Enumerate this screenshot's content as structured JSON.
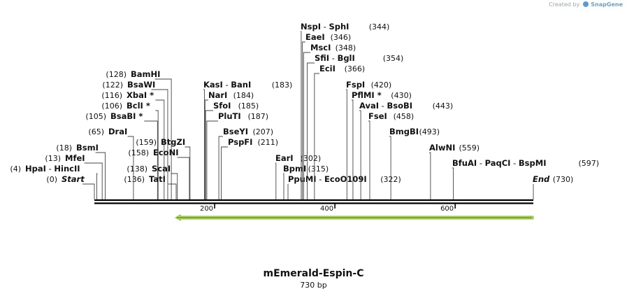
{
  "credit": {
    "prefix": "Created by",
    "brand": "SnapGene"
  },
  "map": {
    "name": "mEmerald-Espin-C",
    "size_label": "730 bp",
    "length_bp": 730,
    "ruler_ticks": [
      200,
      400,
      600
    ],
    "feature": {
      "name": "",
      "start": 135,
      "end": 730,
      "direction": "reverse",
      "color": "#b4e45a"
    },
    "sites": [
      {
        "pos": 0,
        "names": [
          "Start"
        ],
        "style": "italic",
        "num": "(0)"
      },
      {
        "pos": 4,
        "names": [
          "HpaI",
          "HincII"
        ],
        "num": "(4)"
      },
      {
        "pos": 13,
        "names": [
          "MfeI"
        ],
        "num": "(13)"
      },
      {
        "pos": 18,
        "names": [
          "BsmI"
        ],
        "num": "(18)"
      },
      {
        "pos": 65,
        "names": [
          "DraI"
        ],
        "num": "(65)"
      },
      {
        "pos": 105,
        "names": [
          "BsaBI"
        ],
        "star": true,
        "num": "(105)"
      },
      {
        "pos": 106,
        "names": [
          "BclI"
        ],
        "star": true,
        "num": "(106)"
      },
      {
        "pos": 116,
        "names": [
          "XbaI"
        ],
        "star": true,
        "num": "(116)"
      },
      {
        "pos": 122,
        "names": [
          "BsaWI"
        ],
        "num": "(122)"
      },
      {
        "pos": 128,
        "names": [
          "BamHI"
        ],
        "num": "(128)"
      },
      {
        "pos": 136,
        "names": [
          "TatI"
        ],
        "num": "(136)"
      },
      {
        "pos": 138,
        "names": [
          "ScaI"
        ],
        "num": "(138)"
      },
      {
        "pos": 158,
        "names": [
          "EcoNI"
        ],
        "num": "(158)"
      },
      {
        "pos": 159,
        "names": [
          "BtgZI"
        ],
        "num": "(159)"
      },
      {
        "pos": 183,
        "names": [
          "KasI",
          "BanI"
        ],
        "num": "(183)"
      },
      {
        "pos": 184,
        "names": [
          "NarI"
        ],
        "num": "(184)"
      },
      {
        "pos": 185,
        "names": [
          "SfoI"
        ],
        "num": "(185)"
      },
      {
        "pos": 187,
        "names": [
          "PluTI"
        ],
        "num": "(187)"
      },
      {
        "pos": 207,
        "names": [
          "BseYI"
        ],
        "num": "(207)"
      },
      {
        "pos": 211,
        "names": [
          "PspFI"
        ],
        "num": "(211)"
      },
      {
        "pos": 302,
        "names": [
          "EarI"
        ],
        "num": "(302)"
      },
      {
        "pos": 315,
        "names": [
          "BpmI"
        ],
        "num": "(315)"
      },
      {
        "pos": 322,
        "names": [
          "PpuMI",
          "EcoO109I"
        ],
        "num": "(322)"
      },
      {
        "pos": 344,
        "names": [
          "NspI",
          "SphI"
        ],
        "num": "(344)"
      },
      {
        "pos": 346,
        "names": [
          "EaeI"
        ],
        "num": "(346)"
      },
      {
        "pos": 348,
        "names": [
          "MscI"
        ],
        "num": "(348)"
      },
      {
        "pos": 354,
        "names": [
          "SfiI",
          "BglI"
        ],
        "num": "(354)"
      },
      {
        "pos": 366,
        "names": [
          "EciI"
        ],
        "num": "(366)"
      },
      {
        "pos": 420,
        "names": [
          "FspI"
        ],
        "num": "(420)"
      },
      {
        "pos": 430,
        "names": [
          "PflMI"
        ],
        "star": true,
        "num": "(430)"
      },
      {
        "pos": 443,
        "names": [
          "AvaI",
          "BsoBI"
        ],
        "num": "(443)"
      },
      {
        "pos": 458,
        "names": [
          "FseI"
        ],
        "num": "(458)"
      },
      {
        "pos": 493,
        "names": [
          "BmgBI"
        ],
        "num": "(493)"
      },
      {
        "pos": 559,
        "names": [
          "AlwNI"
        ],
        "num": "(559)"
      },
      {
        "pos": 597,
        "names": [
          "BfuAI",
          "PaqCI",
          "BspMI"
        ],
        "num": "(597)"
      },
      {
        "pos": 730,
        "names": [
          "End"
        ],
        "style": "italic",
        "num": "(730)"
      }
    ]
  }
}
